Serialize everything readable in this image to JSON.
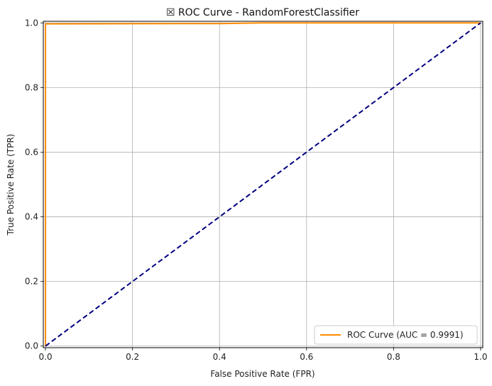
{
  "chart_data": {
    "type": "line",
    "title": "☒ ROC Curve - RandomForestClassifier",
    "xlabel": "False Positive Rate (FPR)",
    "ylabel": "True Positive Rate (TPR)",
    "xlim": [
      -0.005,
      1.005
    ],
    "ylim": [
      -0.005,
      1.005
    ],
    "xticks": [
      "0.0",
      "0.2",
      "0.4",
      "0.6",
      "0.8",
      "1.0"
    ],
    "yticks": [
      "0.0",
      "0.2",
      "0.4",
      "0.6",
      "0.8",
      "1.0"
    ],
    "grid": true,
    "legend_position": "lower-right",
    "series": [
      {
        "name": "ROC Curve (AUC = 0.9991)",
        "color": "#ff8c00",
        "style": "solid",
        "x": [
          0.0,
          0.0,
          0.004,
          0.4,
          0.5,
          1.0
        ],
        "y": [
          0.0,
          0.997,
          0.997,
          0.998,
          1.0,
          1.0
        ]
      },
      {
        "color": "#000080",
        "style": "dashed",
        "x": [
          0.0,
          1.0
        ],
        "y": [
          0.0,
          1.0
        ]
      }
    ]
  }
}
